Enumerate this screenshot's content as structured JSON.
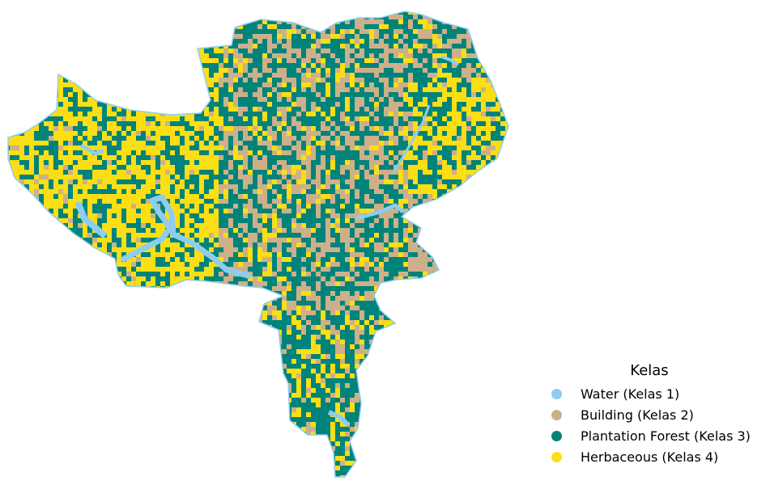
{
  "legend": {
    "title": "Kelas",
    "items": [
      {
        "label": "Water (Kelas 1)",
        "color": "#8ecdf0"
      },
      {
        "label": "Building (Kelas 2)",
        "color": "#cdb089"
      },
      {
        "label": "Plantation Forest (Kelas 3)",
        "color": "#00837a"
      },
      {
        "label": "Herbaceous (Kelas 4)",
        "color": "#fcde14"
      }
    ]
  }
}
